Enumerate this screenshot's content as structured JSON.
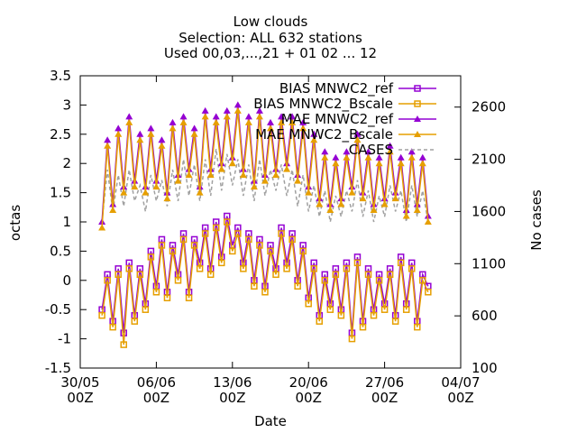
{
  "chart_data": {
    "type": "line",
    "title": [
      "Low clouds",
      "Selection: ALL     632 stations",
      "Used 00,03,...,21 + 01 02 ... 12"
    ],
    "xlabel": "Date",
    "ylabel": "octas",
    "y2label": "No cases",
    "xlim": [
      "2022-05-30",
      "2022-07-04"
    ],
    "ylim": [
      -1.5,
      3.5
    ],
    "y2lim": [
      100,
      2900
    ],
    "x_ticks": [
      {
        "date": "2022-05-30",
        "label": [
          "30/05",
          "00Z"
        ]
      },
      {
        "date": "2022-06-06",
        "label": [
          "06/06",
          "00Z"
        ]
      },
      {
        "date": "2022-06-13",
        "label": [
          "13/06",
          "00Z"
        ]
      },
      {
        "date": "2022-06-20",
        "label": [
          "20/06",
          "00Z"
        ]
      },
      {
        "date": "2022-06-27",
        "label": [
          "27/06",
          "00Z"
        ]
      },
      {
        "date": "2022-07-04",
        "label": [
          "04/07",
          "00Z"
        ]
      }
    ],
    "y_ticks": [
      "-1.5",
      "-1",
      "-0.5",
      "0",
      "0.5",
      "1",
      "1.5",
      "2",
      "2.5",
      "3",
      "3.5"
    ],
    "y2_ticks": [
      "100",
      "600",
      "1100",
      "1600",
      "2100",
      "2600"
    ],
    "legend_position": "top-right",
    "grid": false,
    "series": [
      {
        "name": "BIAS MNWC2_ref",
        "color": "#9400d3",
        "marker": "square",
        "axis": "y",
        "x": [
          "2022-06-01",
          "2022-06-01T12",
          "2022-06-02",
          "2022-06-02T12",
          "2022-06-03",
          "2022-06-03T12",
          "2022-06-04",
          "2022-06-04T12",
          "2022-06-05",
          "2022-06-05T12",
          "2022-06-06",
          "2022-06-06T12",
          "2022-06-07",
          "2022-06-07T12",
          "2022-06-08",
          "2022-06-08T12",
          "2022-06-09",
          "2022-06-09T12",
          "2022-06-10",
          "2022-06-10T12",
          "2022-06-11",
          "2022-06-11T12",
          "2022-06-12",
          "2022-06-12T12",
          "2022-06-13",
          "2022-06-13T12",
          "2022-06-14",
          "2022-06-14T12",
          "2022-06-15",
          "2022-06-15T12",
          "2022-06-16",
          "2022-06-16T12",
          "2022-06-17",
          "2022-06-17T12",
          "2022-06-18",
          "2022-06-18T12",
          "2022-06-19",
          "2022-06-19T12",
          "2022-06-20",
          "2022-06-20T12",
          "2022-06-21",
          "2022-06-21T12",
          "2022-06-22",
          "2022-06-22T12",
          "2022-06-23",
          "2022-06-23T12",
          "2022-06-24",
          "2022-06-24T12",
          "2022-06-25",
          "2022-06-25T12",
          "2022-06-26",
          "2022-06-26T12",
          "2022-06-27",
          "2022-06-27T12",
          "2022-06-28",
          "2022-06-28T12",
          "2022-06-29",
          "2022-06-29T12",
          "2022-06-30",
          "2022-06-30T12",
          "2022-07-01"
        ],
        "values": [
          -0.5,
          0.1,
          -0.7,
          0.2,
          -0.9,
          0.3,
          -0.6,
          0.2,
          -0.4,
          0.5,
          -0.1,
          0.7,
          -0.2,
          0.6,
          0.1,
          0.8,
          -0.2,
          0.7,
          0.3,
          0.9,
          0.2,
          1.0,
          0.4,
          1.1,
          0.6,
          0.9,
          0.3,
          0.8,
          0.0,
          0.7,
          -0.1,
          0.6,
          0.2,
          0.9,
          0.3,
          0.8,
          0.0,
          0.6,
          -0.3,
          0.3,
          -0.6,
          0.1,
          -0.4,
          0.2,
          -0.5,
          0.3,
          -0.9,
          0.4,
          -0.7,
          0.2,
          -0.5,
          0.1,
          -0.4,
          0.2,
          -0.6,
          0.4,
          -0.4,
          0.3,
          -0.7,
          0.1,
          -0.1
        ]
      },
      {
        "name": "BIAS MNWC2_Bscale",
        "color": "#e69f00",
        "marker": "square",
        "axis": "y",
        "x": [
          "2022-06-01",
          "2022-06-01T12",
          "2022-06-02",
          "2022-06-02T12",
          "2022-06-03",
          "2022-06-03T12",
          "2022-06-04",
          "2022-06-04T12",
          "2022-06-05",
          "2022-06-05T12",
          "2022-06-06",
          "2022-06-06T12",
          "2022-06-07",
          "2022-06-07T12",
          "2022-06-08",
          "2022-06-08T12",
          "2022-06-09",
          "2022-06-09T12",
          "2022-06-10",
          "2022-06-10T12",
          "2022-06-11",
          "2022-06-11T12",
          "2022-06-12",
          "2022-06-12T12",
          "2022-06-13",
          "2022-06-13T12",
          "2022-06-14",
          "2022-06-14T12",
          "2022-06-15",
          "2022-06-15T12",
          "2022-06-16",
          "2022-06-16T12",
          "2022-06-17",
          "2022-06-17T12",
          "2022-06-18",
          "2022-06-18T12",
          "2022-06-19",
          "2022-06-19T12",
          "2022-06-20",
          "2022-06-20T12",
          "2022-06-21",
          "2022-06-21T12",
          "2022-06-22",
          "2022-06-22T12",
          "2022-06-23",
          "2022-06-23T12",
          "2022-06-24",
          "2022-06-24T12",
          "2022-06-25",
          "2022-06-25T12",
          "2022-06-26",
          "2022-06-26T12",
          "2022-06-27",
          "2022-06-27T12",
          "2022-06-28",
          "2022-06-28T12",
          "2022-06-29",
          "2022-06-29T12",
          "2022-06-30",
          "2022-06-30T12",
          "2022-07-01"
        ],
        "values": [
          -0.6,
          0.0,
          -0.8,
          0.1,
          -1.1,
          0.2,
          -0.7,
          0.1,
          -0.5,
          0.4,
          -0.2,
          0.6,
          -0.3,
          0.5,
          0.0,
          0.7,
          -0.3,
          0.6,
          0.2,
          0.8,
          0.1,
          0.9,
          0.3,
          1.0,
          0.5,
          0.8,
          0.2,
          0.7,
          -0.1,
          0.6,
          -0.2,
          0.5,
          0.1,
          0.8,
          0.2,
          0.7,
          -0.1,
          0.5,
          -0.4,
          0.2,
          -0.7,
          0.0,
          -0.5,
          0.1,
          -0.6,
          0.2,
          -1.0,
          0.3,
          -0.8,
          0.1,
          -0.6,
          0.0,
          -0.5,
          0.1,
          -0.7,
          0.3,
          -0.5,
          0.2,
          -0.8,
          0.0,
          -0.2
        ]
      },
      {
        "name": "MAE MNWC2_ref",
        "color": "#9400d3",
        "marker": "triangle",
        "axis": "y",
        "x": [
          "2022-06-01",
          "2022-06-01T12",
          "2022-06-02",
          "2022-06-02T12",
          "2022-06-03",
          "2022-06-03T12",
          "2022-06-04",
          "2022-06-04T12",
          "2022-06-05",
          "2022-06-05T12",
          "2022-06-06",
          "2022-06-06T12",
          "2022-06-07",
          "2022-06-07T12",
          "2022-06-08",
          "2022-06-08T12",
          "2022-06-09",
          "2022-06-09T12",
          "2022-06-10",
          "2022-06-10T12",
          "2022-06-11",
          "2022-06-11T12",
          "2022-06-12",
          "2022-06-12T12",
          "2022-06-13",
          "2022-06-13T12",
          "2022-06-14",
          "2022-06-14T12",
          "2022-06-15",
          "2022-06-15T12",
          "2022-06-16",
          "2022-06-16T12",
          "2022-06-17",
          "2022-06-17T12",
          "2022-06-18",
          "2022-06-18T12",
          "2022-06-19",
          "2022-06-19T12",
          "2022-06-20",
          "2022-06-20T12",
          "2022-06-21",
          "2022-06-21T12",
          "2022-06-22",
          "2022-06-22T12",
          "2022-06-23",
          "2022-06-23T12",
          "2022-06-24",
          "2022-06-24T12",
          "2022-06-25",
          "2022-06-25T12",
          "2022-06-26",
          "2022-06-26T12",
          "2022-06-27",
          "2022-06-27T12",
          "2022-06-28",
          "2022-06-28T12",
          "2022-06-29",
          "2022-06-29T12",
          "2022-06-30",
          "2022-06-30T12",
          "2022-07-01"
        ],
        "values": [
          1.0,
          2.4,
          1.3,
          2.6,
          1.6,
          2.8,
          1.7,
          2.5,
          1.6,
          2.6,
          1.7,
          2.4,
          1.5,
          2.7,
          1.8,
          2.8,
          1.9,
          2.6,
          1.6,
          2.9,
          1.9,
          2.8,
          2.0,
          2.9,
          2.1,
          3.0,
          1.9,
          2.8,
          1.7,
          2.9,
          1.8,
          2.7,
          1.9,
          2.8,
          2.0,
          2.8,
          1.8,
          2.7,
          1.6,
          2.5,
          1.4,
          2.2,
          1.3,
          2.1,
          1.4,
          2.2,
          1.6,
          2.5,
          1.5,
          2.2,
          1.3,
          2.1,
          1.4,
          2.3,
          1.5,
          2.1,
          1.2,
          2.2,
          1.3,
          2.1,
          1.1
        ]
      },
      {
        "name": "MAE MNWC2_Bscale",
        "color": "#e69f00",
        "marker": "triangle",
        "axis": "y",
        "x": [
          "2022-06-01",
          "2022-06-01T12",
          "2022-06-02",
          "2022-06-02T12",
          "2022-06-03",
          "2022-06-03T12",
          "2022-06-04",
          "2022-06-04T12",
          "2022-06-05",
          "2022-06-05T12",
          "2022-06-06",
          "2022-06-06T12",
          "2022-06-07",
          "2022-06-07T12",
          "2022-06-08",
          "2022-06-08T12",
          "2022-06-09",
          "2022-06-09T12",
          "2022-06-10",
          "2022-06-10T12",
          "2022-06-11",
          "2022-06-11T12",
          "2022-06-12",
          "2022-06-12T12",
          "2022-06-13",
          "2022-06-13T12",
          "2022-06-14",
          "2022-06-14T12",
          "2022-06-15",
          "2022-06-15T12",
          "2022-06-16",
          "2022-06-16T12",
          "2022-06-17",
          "2022-06-17T12",
          "2022-06-18",
          "2022-06-18T12",
          "2022-06-19",
          "2022-06-19T12",
          "2022-06-20",
          "2022-06-20T12",
          "2022-06-21",
          "2022-06-21T12",
          "2022-06-22",
          "2022-06-22T12",
          "2022-06-23",
          "2022-06-23T12",
          "2022-06-24",
          "2022-06-24T12",
          "2022-06-25",
          "2022-06-25T12",
          "2022-06-26",
          "2022-06-26T12",
          "2022-06-27",
          "2022-06-27T12",
          "2022-06-28",
          "2022-06-28T12",
          "2022-06-29",
          "2022-06-29T12",
          "2022-06-30",
          "2022-06-30T12",
          "2022-07-01"
        ],
        "values": [
          0.9,
          2.3,
          1.2,
          2.5,
          1.5,
          2.7,
          1.6,
          2.4,
          1.5,
          2.5,
          1.6,
          2.3,
          1.4,
          2.6,
          1.7,
          2.7,
          1.8,
          2.5,
          1.5,
          2.8,
          1.8,
          2.7,
          1.9,
          2.8,
          2.0,
          2.9,
          1.8,
          2.7,
          1.6,
          2.8,
          1.7,
          2.6,
          1.8,
          2.7,
          1.9,
          2.7,
          1.7,
          2.6,
          1.5,
          2.4,
          1.3,
          2.1,
          1.2,
          2.0,
          1.3,
          2.1,
          1.5,
          2.4,
          1.4,
          2.1,
          1.2,
          2.0,
          1.3,
          2.2,
          1.4,
          2.0,
          1.1,
          2.1,
          1.2,
          2.0,
          1.0
        ]
      },
      {
        "name": "CASES",
        "color": "#a0a0a0",
        "marker": "none",
        "dashed": true,
        "axis": "y2",
        "x": [
          "2022-06-01",
          "2022-06-01T12",
          "2022-06-02",
          "2022-06-02T12",
          "2022-06-03",
          "2022-06-03T12",
          "2022-06-04",
          "2022-06-04T12",
          "2022-06-05",
          "2022-06-05T12",
          "2022-06-06",
          "2022-06-06T12",
          "2022-06-07",
          "2022-06-07T12",
          "2022-06-08",
          "2022-06-08T12",
          "2022-06-09",
          "2022-06-09T12",
          "2022-06-10",
          "2022-06-10T12",
          "2022-06-11",
          "2022-06-11T12",
          "2022-06-12",
          "2022-06-12T12",
          "2022-06-13",
          "2022-06-13T12",
          "2022-06-14",
          "2022-06-14T12",
          "2022-06-15",
          "2022-06-15T12",
          "2022-06-16",
          "2022-06-16T12",
          "2022-06-17",
          "2022-06-17T12",
          "2022-06-18",
          "2022-06-18T12",
          "2022-06-19",
          "2022-06-19T12",
          "2022-06-20",
          "2022-06-20T12",
          "2022-06-21",
          "2022-06-21T12",
          "2022-06-22",
          "2022-06-22T12",
          "2022-06-23",
          "2022-06-23T12",
          "2022-06-24",
          "2022-06-24T12",
          "2022-06-25",
          "2022-06-25T12",
          "2022-06-26",
          "2022-06-26T12",
          "2022-06-27",
          "2022-06-27T12",
          "2022-06-28",
          "2022-06-28T12",
          "2022-06-29",
          "2022-06-29T12",
          "2022-06-30",
          "2022-06-30T12",
          "2022-07-01"
        ],
        "values": [
          1500,
          2000,
          1600,
          1950,
          1650,
          2000,
          1700,
          1850,
          1600,
          1950,
          1700,
          1900,
          1650,
          2000,
          1700,
          2100,
          1750,
          2050,
          1700,
          2100,
          1750,
          2200,
          1800,
          2150,
          1850,
          2100,
          1750,
          2050,
          1700,
          2100,
          1750,
          2000,
          1800,
          2050,
          1750,
          2000,
          1650,
          1950,
          1600,
          1850,
          1550,
          1800,
          1500,
          1750,
          1550,
          1800,
          1600,
          1900,
          1550,
          1800,
          1500,
          1750,
          1550,
          1850,
          1600,
          1800,
          1500,
          1850,
          1550,
          1800,
          1500
        ]
      }
    ]
  }
}
